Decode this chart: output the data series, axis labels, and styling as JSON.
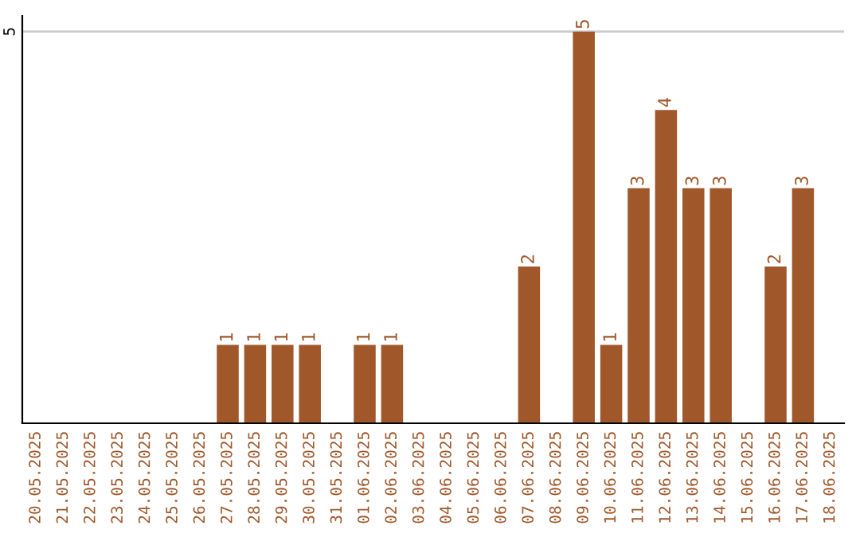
{
  "chart_data": {
    "type": "bar",
    "categories": [
      "20.05.2025",
      "21.05.2025",
      "22.05.2025",
      "23.05.2025",
      "24.05.2025",
      "25.05.2025",
      "26.05.2025",
      "27.05.2025",
      "28.05.2025",
      "29.05.2025",
      "30.05.2025",
      "31.05.2025",
      "01.06.2025",
      "02.06.2025",
      "03.06.2025",
      "04.06.2025",
      "05.06.2025",
      "06.06.2025",
      "07.06.2025",
      "08.06.2025",
      "09.06.2025",
      "10.06.2025",
      "11.06.2025",
      "12.06.2025",
      "13.06.2025",
      "14.06.2025",
      "15.06.2025",
      "16.06.2025",
      "17.06.2025",
      "18.06.2025"
    ],
    "values": [
      0,
      0,
      0,
      0,
      0,
      0,
      0,
      1,
      1,
      1,
      1,
      0,
      1,
      1,
      0,
      0,
      0,
      0,
      2,
      0,
      5,
      1,
      3,
      4,
      3,
      3,
      0,
      2,
      3,
      0
    ],
    "value_labels": [
      null,
      null,
      null,
      null,
      null,
      null,
      null,
      "1",
      "1",
      "1",
      "1",
      null,
      "1",
      "1",
      null,
      null,
      null,
      null,
      "2",
      null,
      "5",
      "1",
      "3",
      "4",
      "3",
      "3",
      null,
      "2",
      "3",
      null
    ],
    "color": "#a0572a",
    "ylim": [
      0,
      5.2
    ],
    "yticks": [
      5
    ],
    "grid": "y"
  }
}
